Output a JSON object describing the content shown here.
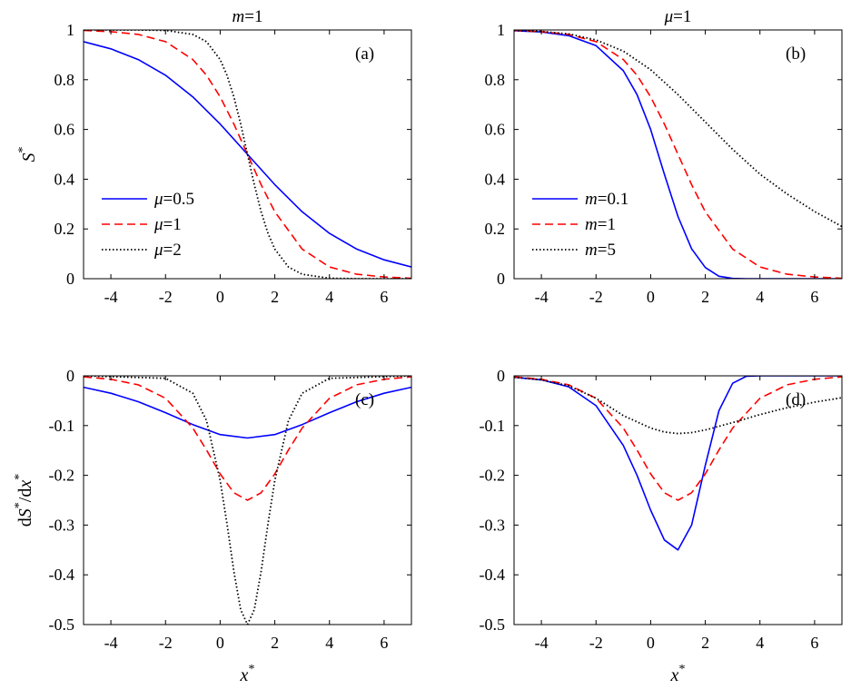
{
  "chart_data": [
    {
      "id": "a",
      "type": "line",
      "title": "m=1",
      "title_parts": [
        {
          "t": "m",
          "italic": true
        },
        {
          "t": "=1",
          "italic": false
        }
      ],
      "panel_label": "(a)",
      "xlabel": "",
      "ylabel": "S*",
      "xlim": [
        -5,
        7
      ],
      "ylim": [
        0,
        1
      ],
      "xticks": [
        -4,
        -2,
        0,
        2,
        4,
        6
      ],
      "yticks": [
        0,
        0.2,
        0.4,
        0.6,
        0.8,
        1
      ],
      "ytick_labels": [
        "0",
        "0.2",
        "0.4",
        "0.6",
        "0.8",
        "1"
      ],
      "legend": "bottom-left",
      "grid": false,
      "series": [
        {
          "name": "μ=0.5",
          "name_parts": [
            {
              "t": "μ",
              "italic": true
            },
            {
              "t": "=0.5",
              "italic": false
            }
          ],
          "color": "#0000ff",
          "dash": "solid",
          "x": [
            -5,
            -4,
            -3,
            -2,
            -1,
            0,
            1,
            2,
            3,
            4,
            5,
            6,
            7
          ],
          "y": [
            0.953,
            0.924,
            0.881,
            0.818,
            0.731,
            0.622,
            0.5,
            0.378,
            0.269,
            0.182,
            0.119,
            0.076,
            0.047
          ]
        },
        {
          "name": "μ=1",
          "name_parts": [
            {
              "t": "μ",
              "italic": true
            },
            {
              "t": "=1",
              "italic": false
            }
          ],
          "color": "#ff0000",
          "dash": "dashed",
          "x": [
            -5,
            -4,
            -3,
            -2,
            -1,
            -0.5,
            0,
            0.5,
            1,
            1.5,
            2,
            3,
            4,
            5,
            6,
            7
          ],
          "y": [
            0.998,
            0.993,
            0.982,
            0.953,
            0.881,
            0.818,
            0.731,
            0.622,
            0.5,
            0.378,
            0.269,
            0.119,
            0.047,
            0.018,
            0.007,
            0.002
          ]
        },
        {
          "name": "μ=2",
          "name_parts": [
            {
              "t": "μ",
              "italic": true
            },
            {
              "t": "=2",
              "italic": false
            }
          ],
          "color": "#000000",
          "dash": "dotted",
          "x": [
            -5,
            -3,
            -2,
            -1,
            -0.5,
            0,
            0.25,
            0.5,
            0.75,
            1,
            1.25,
            1.5,
            1.75,
            2,
            2.5,
            3,
            4,
            5,
            7
          ],
          "y": [
            1.0,
            1.0,
            0.998,
            0.982,
            0.953,
            0.881,
            0.818,
            0.731,
            0.622,
            0.5,
            0.378,
            0.269,
            0.182,
            0.119,
            0.047,
            0.018,
            0.002,
            0.0,
            0.0
          ]
        }
      ]
    },
    {
      "id": "b",
      "type": "line",
      "title": "μ=1",
      "title_parts": [
        {
          "t": "μ",
          "italic": true
        },
        {
          "t": "=1",
          "italic": false
        }
      ],
      "panel_label": "(b)",
      "xlabel": "",
      "ylabel": "",
      "xlim": [
        -5,
        7
      ],
      "ylim": [
        0,
        1
      ],
      "xticks": [
        -4,
        -2,
        0,
        2,
        4,
        6
      ],
      "yticks": [
        0,
        0.2,
        0.4,
        0.6,
        0.8,
        1
      ],
      "ytick_labels": [
        "0",
        "0.2",
        "0.4",
        "0.6",
        "0.8",
        "1"
      ],
      "legend": "bottom-left",
      "grid": false,
      "series": [
        {
          "name": "m=0.1",
          "name_parts": [
            {
              "t": "m",
              "italic": true
            },
            {
              "t": "=0.1",
              "italic": false
            }
          ],
          "color": "#0000ff",
          "dash": "solid",
          "x": [
            -5,
            -4,
            -3,
            -2,
            -1,
            -0.5,
            0,
            0.5,
            1,
            1.5,
            2,
            2.5,
            3,
            3.5,
            4,
            7
          ],
          "y": [
            0.997,
            0.992,
            0.977,
            0.937,
            0.836,
            0.74,
            0.6,
            0.42,
            0.25,
            0.12,
            0.045,
            0.01,
            0.001,
            0.0,
            0.0,
            0.0
          ]
        },
        {
          "name": "m=1",
          "name_parts": [
            {
              "t": "m",
              "italic": true
            },
            {
              "t": "=1",
              "italic": false
            }
          ],
          "color": "#ff0000",
          "dash": "dashed",
          "x": [
            -5,
            -4,
            -3,
            -2,
            -1,
            -0.5,
            0,
            0.5,
            1,
            1.5,
            2,
            3,
            4,
            5,
            6,
            7
          ],
          "y": [
            0.998,
            0.993,
            0.982,
            0.953,
            0.881,
            0.818,
            0.731,
            0.622,
            0.5,
            0.378,
            0.269,
            0.119,
            0.047,
            0.018,
            0.007,
            0.002
          ]
        },
        {
          "name": "m=5",
          "name_parts": [
            {
              "t": "m",
              "italic": true
            },
            {
              "t": "=5",
              "italic": false
            }
          ],
          "color": "#000000",
          "dash": "dotted",
          "x": [
            -5,
            -4,
            -3,
            -2,
            -1,
            0,
            1,
            2,
            3,
            4,
            5,
            6,
            7
          ],
          "y": [
            0.998,
            0.994,
            0.984,
            0.96,
            0.915,
            0.84,
            0.74,
            0.63,
            0.52,
            0.42,
            0.34,
            0.27,
            0.21
          ]
        }
      ]
    },
    {
      "id": "c",
      "type": "line",
      "title": "",
      "panel_label": "(c)",
      "xlabel": "x*",
      "ylabel": "dS*/dx*",
      "xlim": [
        -5,
        7
      ],
      "ylim": [
        -0.5,
        0
      ],
      "xticks": [
        -4,
        -2,
        0,
        2,
        4,
        6
      ],
      "yticks": [
        -0.5,
        -0.4,
        -0.3,
        -0.2,
        -0.1,
        0
      ],
      "ytick_labels": [
        "-0.5",
        "-0.4",
        "-0.3",
        "-0.2",
        "-0.1",
        "0"
      ],
      "legend": "none",
      "grid": false,
      "series": [
        {
          "color": "#0000ff",
          "dash": "solid",
          "x": [
            -5,
            -4,
            -3,
            -2,
            -1,
            0,
            1,
            2,
            3,
            4,
            5,
            6,
            7
          ],
          "y": [
            -0.023,
            -0.035,
            -0.052,
            -0.074,
            -0.098,
            -0.118,
            -0.125,
            -0.118,
            -0.098,
            -0.074,
            -0.052,
            -0.035,
            -0.023
          ]
        },
        {
          "color": "#ff0000",
          "dash": "dashed",
          "x": [
            -5,
            -4,
            -3,
            -2,
            -1,
            -0.5,
            0,
            0.5,
            1,
            1.5,
            2,
            2.5,
            3,
            4,
            5,
            6,
            7
          ],
          "y": [
            -0.002,
            -0.007,
            -0.018,
            -0.045,
            -0.105,
            -0.149,
            -0.197,
            -0.235,
            -0.25,
            -0.235,
            -0.197,
            -0.149,
            -0.105,
            -0.045,
            -0.018,
            -0.007,
            -0.002
          ]
        },
        {
          "color": "#000000",
          "dash": "dotted",
          "x": [
            -5,
            -2,
            -1,
            -0.5,
            0,
            0.25,
            0.5,
            0.75,
            1,
            1.25,
            1.5,
            1.75,
            2,
            2.5,
            3,
            4,
            7
          ],
          "y": [
            0.0,
            -0.005,
            -0.035,
            -0.09,
            -0.21,
            -0.297,
            -0.393,
            -0.47,
            -0.5,
            -0.47,
            -0.393,
            -0.297,
            -0.21,
            -0.09,
            -0.035,
            -0.005,
            0.0
          ]
        }
      ]
    },
    {
      "id": "d",
      "type": "line",
      "title": "",
      "panel_label": "(d)",
      "xlabel": "x*",
      "ylabel": "",
      "xlim": [
        -5,
        7
      ],
      "ylim": [
        -0.5,
        0
      ],
      "xticks": [
        -4,
        -2,
        0,
        2,
        4,
        6
      ],
      "yticks": [
        -0.5,
        -0.4,
        -0.3,
        -0.2,
        -0.1,
        0
      ],
      "ytick_labels": [
        "-0.5",
        "-0.4",
        "-0.3",
        "-0.2",
        "-0.1",
        "0"
      ],
      "legend": "none",
      "grid": false,
      "series": [
        {
          "color": "#0000ff",
          "dash": "solid",
          "x": [
            -5,
            -4,
            -3,
            -2,
            -1,
            -0.5,
            0,
            0.5,
            1,
            1.5,
            2,
            2.5,
            3,
            3.5,
            4,
            7
          ],
          "y": [
            -0.003,
            -0.008,
            -0.022,
            -0.06,
            -0.14,
            -0.2,
            -0.27,
            -0.33,
            -0.35,
            -0.3,
            -0.18,
            -0.07,
            -0.015,
            -0.001,
            0.0,
            0.0
          ]
        },
        {
          "color": "#ff0000",
          "dash": "dashed",
          "x": [
            -5,
            -4,
            -3,
            -2,
            -1,
            -0.5,
            0,
            0.5,
            1,
            1.5,
            2,
            2.5,
            3,
            4,
            5,
            6,
            7
          ],
          "y": [
            -0.002,
            -0.007,
            -0.018,
            -0.045,
            -0.105,
            -0.149,
            -0.197,
            -0.235,
            -0.25,
            -0.235,
            -0.197,
            -0.149,
            -0.105,
            -0.045,
            -0.018,
            -0.007,
            -0.002
          ]
        },
        {
          "color": "#000000",
          "dash": "dotted",
          "x": [
            -5,
            -4,
            -3,
            -2,
            -1,
            0,
            0.5,
            1,
            1.5,
            2,
            3,
            4,
            5,
            6,
            7
          ],
          "y": [
            -0.003,
            -0.008,
            -0.02,
            -0.045,
            -0.08,
            -0.105,
            -0.113,
            -0.116,
            -0.114,
            -0.109,
            -0.094,
            -0.078,
            -0.064,
            -0.053,
            -0.044
          ]
        }
      ]
    }
  ]
}
